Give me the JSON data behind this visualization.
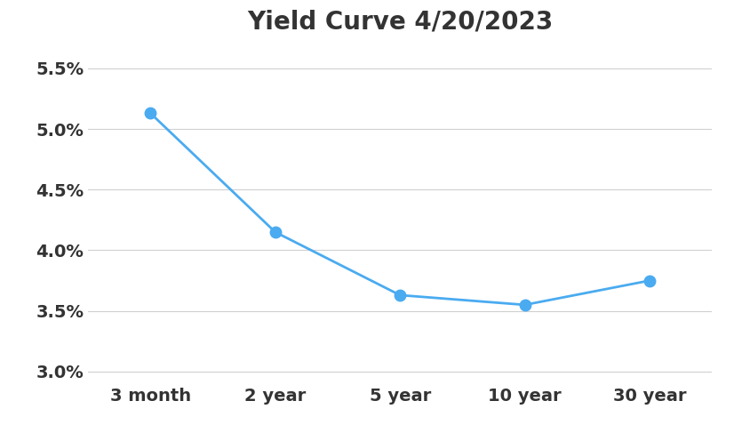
{
  "title": "Yield Curve 4/20/2023",
  "categories": [
    "3 month",
    "2 year",
    "5 year",
    "10 year",
    "30 year"
  ],
  "x_positions": [
    0,
    1,
    2,
    3,
    4
  ],
  "yields": [
    0.0513,
    0.0415,
    0.0363,
    0.0355,
    0.0375
  ],
  "line_color": "#4AABF0",
  "marker_color": "#4AABF0",
  "marker_size": 9,
  "line_width": 2.0,
  "ylim": [
    0.029,
    0.057
  ],
  "yticks": [
    0.03,
    0.035,
    0.04,
    0.045,
    0.05,
    0.055
  ],
  "background_color": "#ffffff",
  "grid_color": "#d0d0d0",
  "title_fontsize": 20,
  "tick_fontsize": 14,
  "title_color": "#333333",
  "tick_color": "#333333"
}
